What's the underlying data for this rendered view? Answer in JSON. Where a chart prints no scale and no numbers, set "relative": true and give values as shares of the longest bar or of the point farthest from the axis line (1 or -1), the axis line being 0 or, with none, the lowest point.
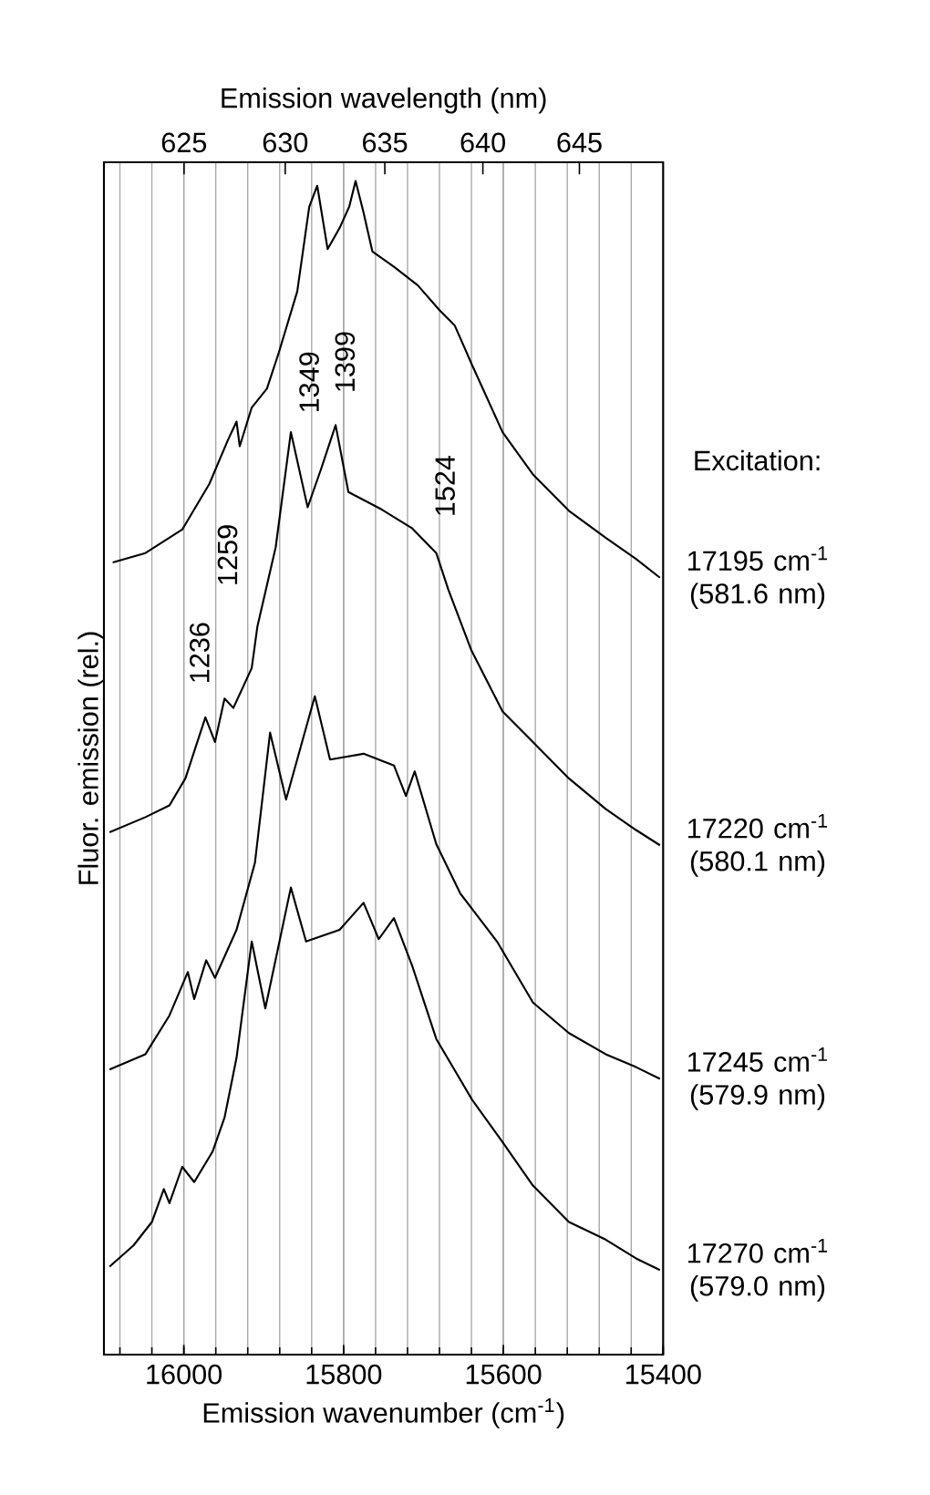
{
  "chart_data": {
    "type": "line",
    "relative": true,
    "xlabel": "Emission wavenumber (cm$^{-1}$)",
    "ylabel": "Fluor. emission (rel.)",
    "x2label": "Emission wavelength (nm)",
    "xlim": [
      16100,
      15400
    ],
    "xticks": [
      16000,
      15800,
      15600,
      15400
    ],
    "x2lim": [
      621.1,
      649.4
    ],
    "x2ticks": [
      625,
      630,
      635,
      640,
      645
    ],
    "grid": "x",
    "legend": false,
    "marker": "none",
    "line_style": "solid",
    "annotations": [
      "Excitation:",
      "1236",
      "1259",
      "1349",
      "1399",
      "1524"
    ],
    "series": [
      {
        "name": "17195 cm$^{-1}$ (581.6 nm)",
        "color": "#000000",
        "x": [
          16089,
          16048,
          16002,
          15968,
          15945,
          15934,
          15930,
          15915,
          15896,
          15881,
          15858,
          15843,
          15833,
          15820,
          15805,
          15793,
          15785,
          15775,
          15764,
          15737,
          15707,
          15680,
          15661,
          15639,
          15601,
          15563,
          15518,
          15472,
          15434,
          15404
        ],
        "values": [
          0.675,
          0.683,
          0.703,
          0.742,
          0.779,
          0.795,
          0.774,
          0.807,
          0.823,
          0.854,
          0.906,
          0.978,
          0.996,
          0.942,
          0.96,
          0.978,
          1.0,
          0.973,
          0.94,
          0.927,
          0.911,
          0.89,
          0.877,
          0.843,
          0.786,
          0.75,
          0.719,
          0.696,
          0.678,
          0.662
        ]
      },
      {
        "name": "17220 cm$^{-1}$ (580.1 nm)",
        "color": "#000000",
        "x": [
          16093,
          16048,
          16018,
          15998,
          15973,
          15961,
          15949,
          15938,
          15915,
          15908,
          15885,
          15866,
          15845,
          15828,
          15810,
          15794,
          15752,
          15714,
          15684,
          15669,
          15640,
          15601,
          15563,
          15518,
          15472,
          15434,
          15404
        ],
        "values": [
          0.445,
          0.458,
          0.468,
          0.491,
          0.543,
          0.522,
          0.559,
          0.551,
          0.585,
          0.62,
          0.688,
          0.786,
          0.722,
          0.755,
          0.792,
          0.735,
          0.72,
          0.704,
          0.683,
          0.652,
          0.6,
          0.548,
          0.522,
          0.491,
          0.465,
          0.447,
          0.434
        ]
      },
      {
        "name": "17245 cm$^{-1}$ (579.9 nm)",
        "color": "#000000",
        "x": [
          16093,
          16048,
          16018,
          15995,
          15987,
          15972,
          15961,
          15934,
          15911,
          15892,
          15872,
          15836,
          15817,
          15775,
          15737,
          15722,
          15711,
          15684,
          15654,
          15608,
          15563,
          15518,
          15472,
          15434,
          15404
        ],
        "values": [
          0.243,
          0.256,
          0.289,
          0.326,
          0.303,
          0.336,
          0.321,
          0.362,
          0.419,
          0.53,
          0.473,
          0.561,
          0.507,
          0.512,
          0.502,
          0.476,
          0.497,
          0.435,
          0.393,
          0.352,
          0.3,
          0.274,
          0.256,
          0.245,
          0.235
        ]
      },
      {
        "name": "17270 cm$^{-1}$ (579.0 nm)",
        "color": "#000000",
        "x": [
          16093,
          16063,
          16040,
          16025,
          16018,
          16002,
          15987,
          15964,
          15949,
          15934,
          15915,
          15898,
          15866,
          15847,
          15805,
          15775,
          15756,
          15737,
          15714,
          15684,
          15639,
          15601,
          15563,
          15518,
          15472,
          15434,
          15404
        ],
        "values": [
          0.075,
          0.093,
          0.113,
          0.141,
          0.129,
          0.16,
          0.147,
          0.173,
          0.202,
          0.253,
          0.352,
          0.295,
          0.398,
          0.352,
          0.362,
          0.385,
          0.354,
          0.372,
          0.331,
          0.269,
          0.217,
          0.181,
          0.144,
          0.113,
          0.098,
          0.082,
          0.072
        ]
      }
    ]
  }
}
